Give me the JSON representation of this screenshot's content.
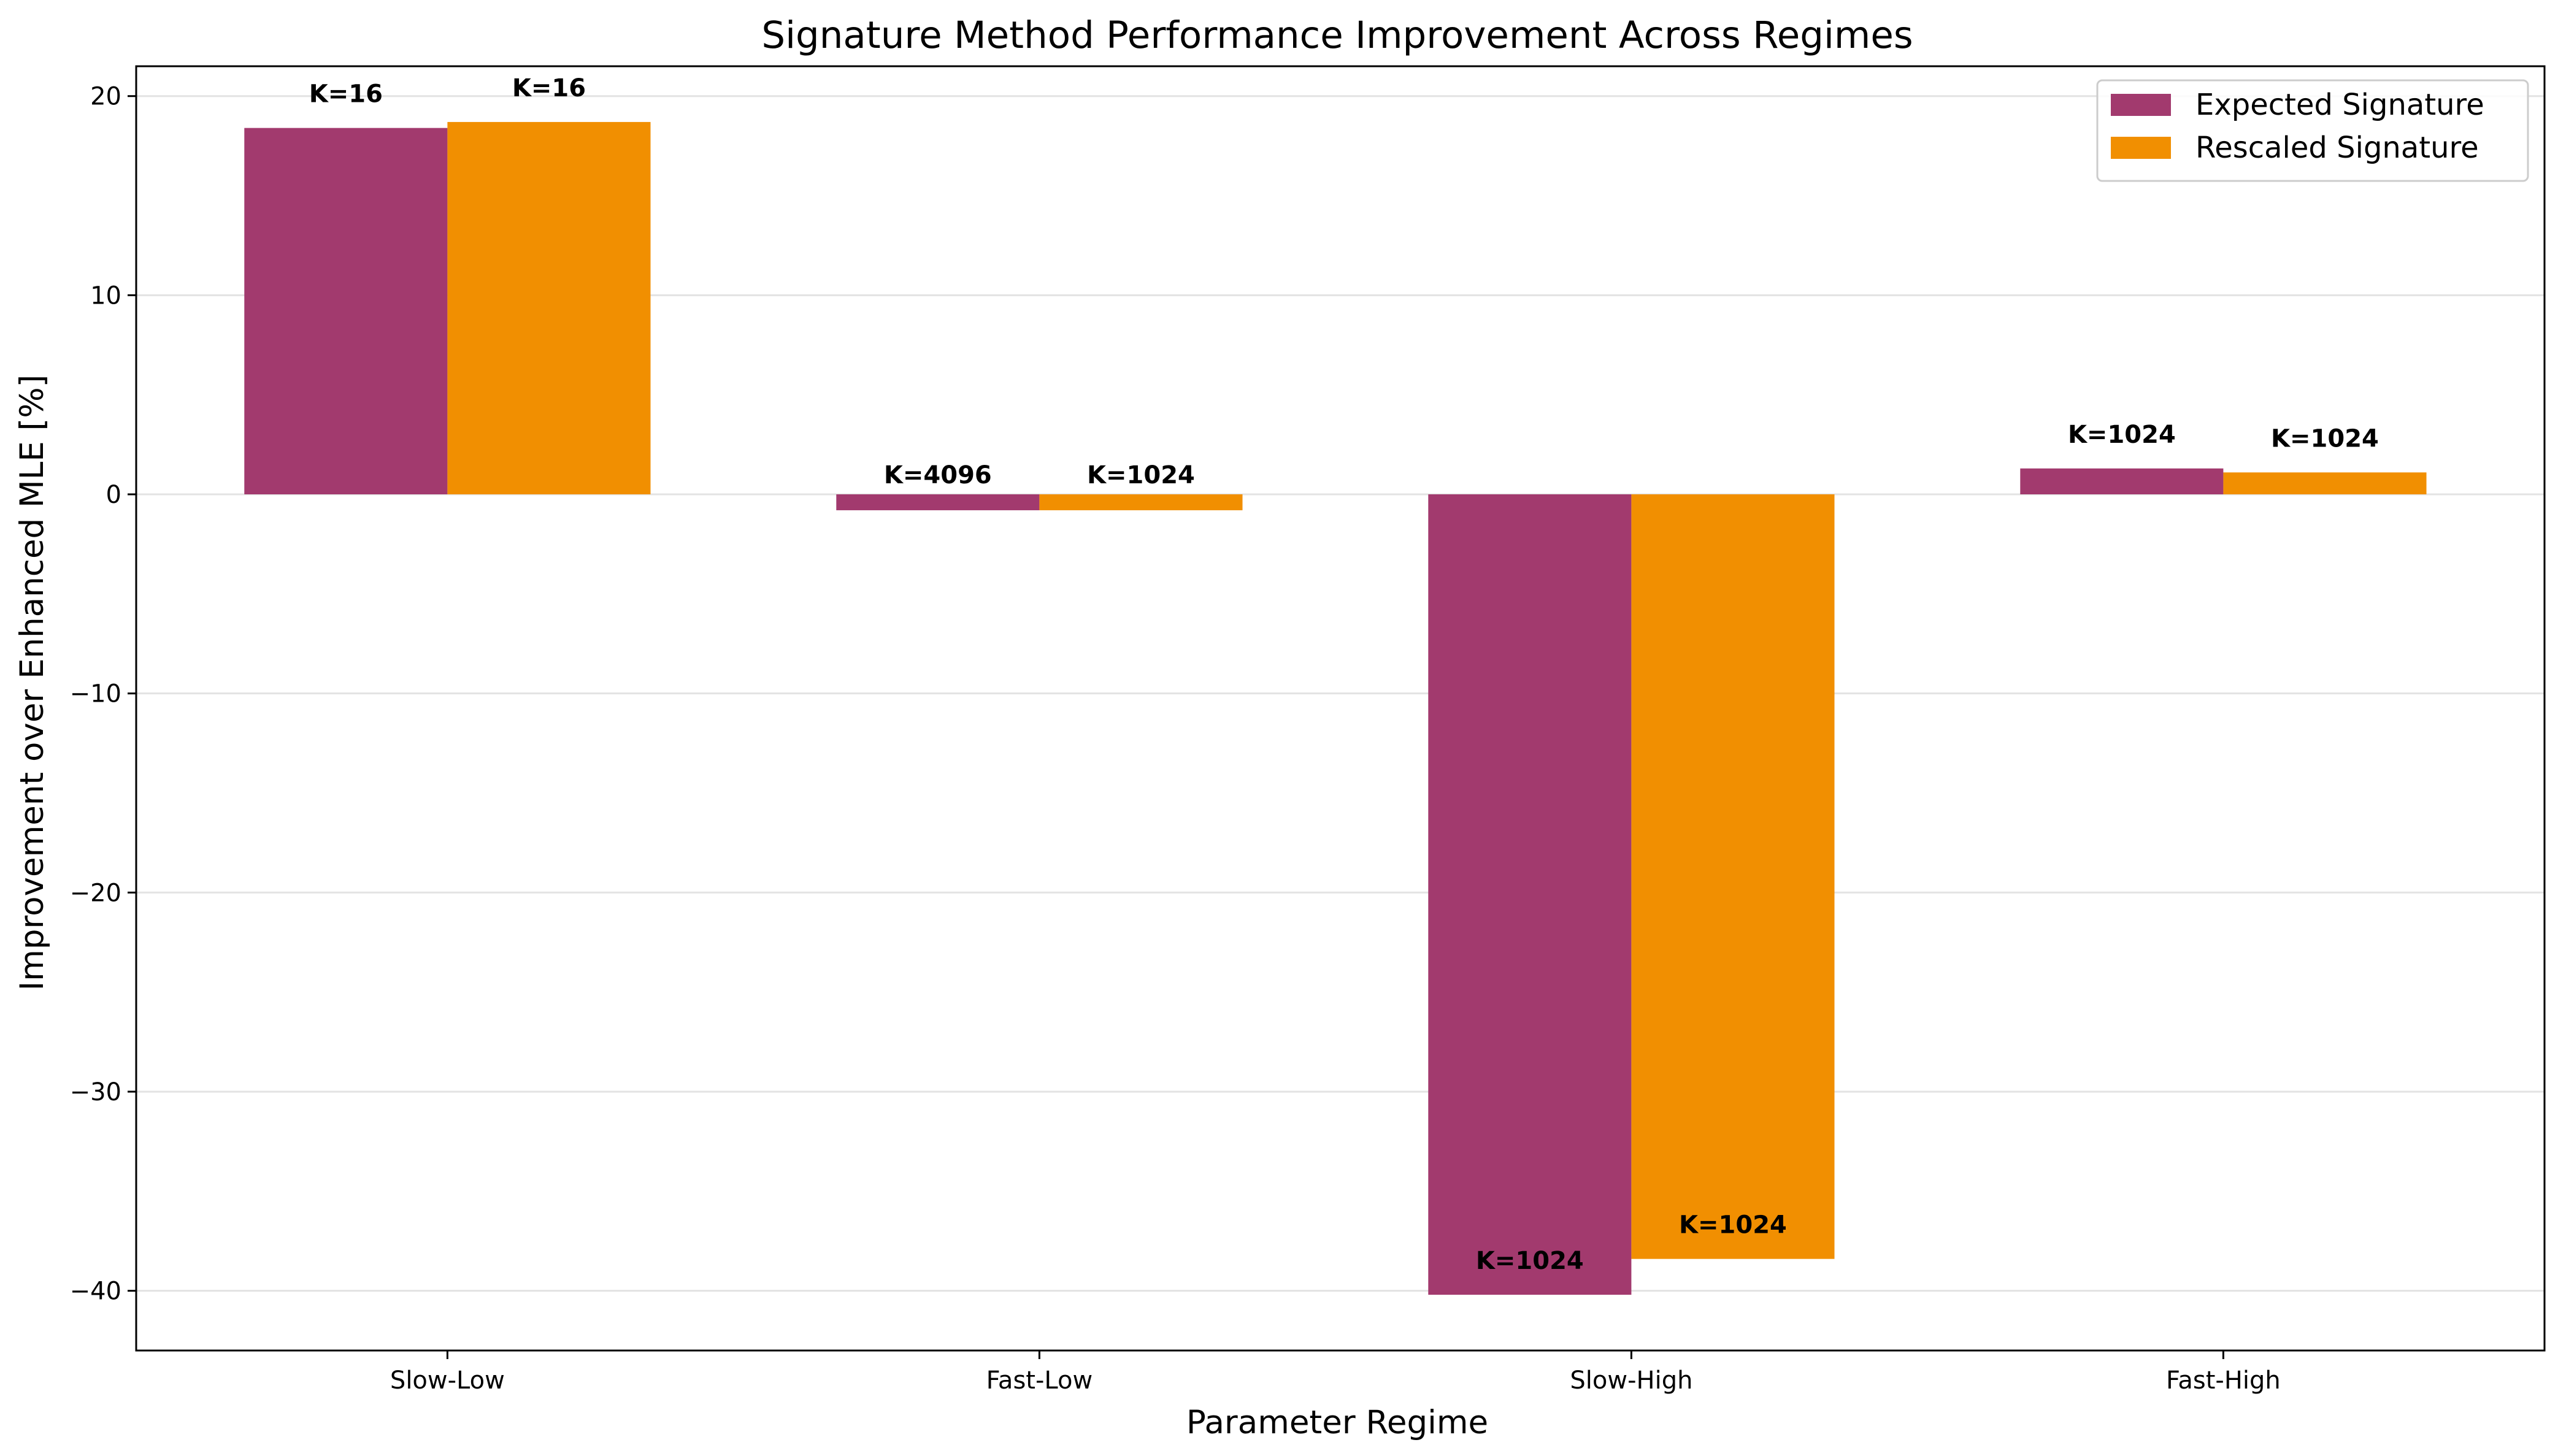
{
  "chart_data": {
    "type": "bar",
    "title": "Signature Method Performance Improvement Across Regimes",
    "xlabel": "Parameter Regime",
    "ylabel": "Improvement over Enhanced MLE [%]",
    "categories": [
      "Slow-Low",
      "Fast-Low",
      "Slow-High",
      "Fast-High"
    ],
    "series": [
      {
        "name": "Expected Signature",
        "color": "#a23a6e",
        "values": [
          18.4,
          -0.8,
          -40.2,
          1.3
        ],
        "labels": [
          "K=16",
          "K=4096",
          "K=1024",
          "K=1024"
        ]
      },
      {
        "name": "Rescaled Signature",
        "color": "#f18f01",
        "values": [
          18.7,
          -0.8,
          -38.4,
          1.1
        ],
        "labels": [
          "K=16",
          "K=1024",
          "K=1024",
          "K=1024"
        ]
      }
    ],
    "ylim": [
      -43,
      21.5
    ],
    "yticks": [
      20,
      10,
      0,
      -10,
      -20,
      -30,
      -40
    ],
    "ytick_labels": [
      "20",
      "10",
      "0",
      "−10",
      "−20",
      "−30",
      "−40"
    ],
    "grid": "y",
    "legend_position": "top-right"
  }
}
